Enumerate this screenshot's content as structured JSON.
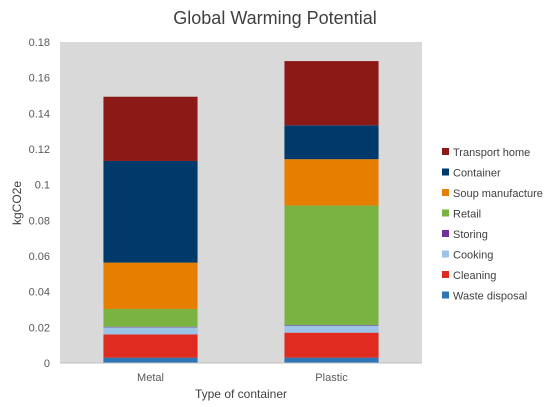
{
  "chart_data": {
    "type": "bar",
    "stacked": true,
    "title": "Global Warming Potential",
    "xlabel": "Type of container",
    "ylabel": "kgCO2e",
    "categories": [
      "Metal",
      "Plastic"
    ],
    "ylim": [
      0,
      0.18
    ],
    "yticks": [
      "0",
      "0.02",
      "0.04",
      "0.06",
      "0.08",
      "0.1",
      "0.12",
      "0.14",
      "0.16",
      "0.18"
    ],
    "grid": false,
    "plot_background": "#d9d9d9",
    "legend_position": "right",
    "series": [
      {
        "name": "Waste disposal",
        "color": "#2e75b6",
        "values": [
          0.003,
          0.003
        ]
      },
      {
        "name": "Cleaning",
        "color": "#e02b20",
        "values": [
          0.013,
          0.014
        ]
      },
      {
        "name": "Cooking",
        "color": "#9dc3e6",
        "values": [
          0.004,
          0.004
        ]
      },
      {
        "name": "Storing",
        "color": "#7030a0",
        "values": [
          0.0003,
          0.0003
        ]
      },
      {
        "name": "Retail",
        "color": "#7bb342",
        "values": [
          0.01,
          0.067
        ]
      },
      {
        "name": "Soup manufacture",
        "color": "#e67e00",
        "values": [
          0.026,
          0.026
        ]
      },
      {
        "name": "Container",
        "color": "#003a6b",
        "values": [
          0.057,
          0.019
        ]
      },
      {
        "name": "Transport home",
        "color": "#8b1a17",
        "values": [
          0.036,
          0.036
        ]
      }
    ]
  }
}
